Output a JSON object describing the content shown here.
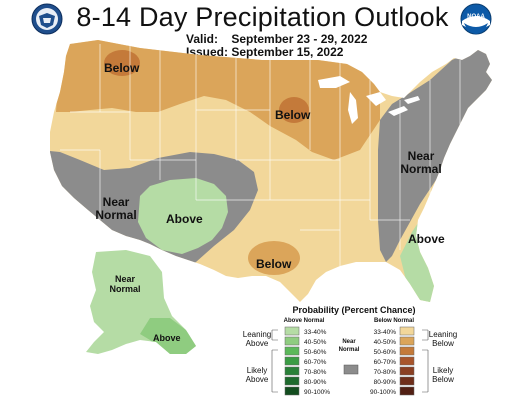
{
  "title": "8-14 Day Precipitation Outlook",
  "valid_label": "Valid:",
  "valid_dates": "September 23 - 29, 2022",
  "issued_label": "Issued:",
  "issued_date": "September 15, 2022",
  "logos": {
    "left": "doc-seal-icon",
    "right": "noaa-logo-icon",
    "right_text": "NOAA"
  },
  "region_labels": {
    "below_northwest": "Below",
    "below_upper_midwest": "Below",
    "below_texas": "Below",
    "above_southwest": "Above",
    "above_southeast": "Above",
    "above_alaska": "Above",
    "near_normal_west": "Near\nNormal",
    "near_normal_east": "Near\nNormal",
    "near_normal_alaska": "Near\nNormal"
  },
  "legend": {
    "title": "Probability (Percent Chance)",
    "above_header": "Above Normal",
    "below_header": "Below Normal",
    "near_label": "Near\nNormal",
    "leaning_above": "Leaning\nAbove",
    "likely_above": "Likely\nAbove",
    "leaning_below": "Leaning\nBelow",
    "likely_below": "Likely\nBelow",
    "above_bins": [
      {
        "label": "33-40%",
        "color": "#b5dca5"
      },
      {
        "label": "40-50%",
        "color": "#8fcc80"
      },
      {
        "label": "50-60%",
        "color": "#5cb85a"
      },
      {
        "label": "60-70%",
        "color": "#3b9c44"
      },
      {
        "label": "70-80%",
        "color": "#2a8038"
      },
      {
        "label": "80-90%",
        "color": "#1e6a2d"
      },
      {
        "label": "90-100%",
        "color": "#134d1f"
      }
    ],
    "below_bins": [
      {
        "label": "33-40%",
        "color": "#f2d79a"
      },
      {
        "label": "40-50%",
        "color": "#dba55a"
      },
      {
        "label": "50-60%",
        "color": "#c47a3a"
      },
      {
        "label": "60-70%",
        "color": "#a8552b"
      },
      {
        "label": "70-80%",
        "color": "#8a3f22"
      },
      {
        "label": "80-90%",
        "color": "#6f2e1a"
      },
      {
        "label": "90-100%",
        "color": "#522014"
      }
    ],
    "near_color": "#8c8c8c"
  },
  "colors": {
    "below_33": "#f2d79a",
    "below_40": "#dba55a",
    "below_50": "#c47a3a",
    "above_33": "#b5dca5",
    "above_40": "#8fcc80",
    "near": "#8c8c8c",
    "ocean": "#ffffff",
    "border": "#ffffff"
  }
}
